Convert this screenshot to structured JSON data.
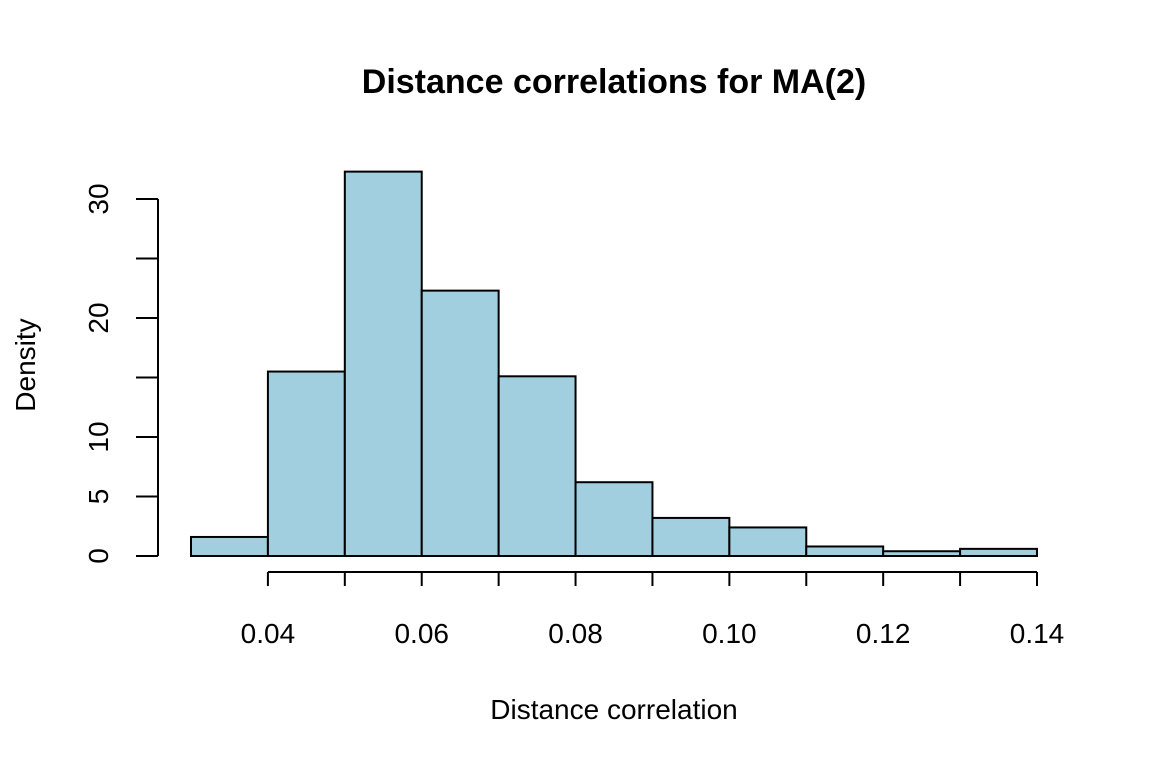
{
  "chart_data": {
    "type": "bar",
    "title": "Distance correlations for MA(2)",
    "xlabel": "Distance correlation",
    "ylabel": "Density",
    "bins": [
      {
        "start": 0.03,
        "end": 0.04,
        "density": 1.6
      },
      {
        "start": 0.04,
        "end": 0.05,
        "density": 15.5
      },
      {
        "start": 0.05,
        "end": 0.06,
        "density": 32.3
      },
      {
        "start": 0.06,
        "end": 0.07,
        "density": 22.3
      },
      {
        "start": 0.07,
        "end": 0.08,
        "density": 15.1
      },
      {
        "start": 0.08,
        "end": 0.09,
        "density": 6.2
      },
      {
        "start": 0.09,
        "end": 0.1,
        "density": 3.2
      },
      {
        "start": 0.1,
        "end": 0.11,
        "density": 2.4
      },
      {
        "start": 0.11,
        "end": 0.12,
        "density": 0.8
      },
      {
        "start": 0.12,
        "end": 0.13,
        "density": 0.4
      },
      {
        "start": 0.13,
        "end": 0.14,
        "density": 0.6
      }
    ],
    "xlim": [
      0.03,
      0.14
    ],
    "ylim": [
      0,
      30
    ],
    "x_ticks": [
      {
        "value": 0.04,
        "label": "0.04"
      },
      {
        "value": 0.06,
        "label": "0.06"
      },
      {
        "value": 0.08,
        "label": "0.08"
      },
      {
        "value": 0.1,
        "label": "0.10"
      },
      {
        "value": 0.12,
        "label": "0.12"
      },
      {
        "value": 0.14,
        "label": "0.14"
      }
    ],
    "x_minor_ticks": [
      0.05,
      0.07,
      0.09,
      0.11,
      0.13
    ],
    "y_ticks": [
      {
        "value": 0,
        "label": "0"
      },
      {
        "value": 5,
        "label": "5"
      },
      {
        "value": 10,
        "label": "10"
      },
      {
        "value": 15,
        "label": ""
      },
      {
        "value": 20,
        "label": "20"
      },
      {
        "value": 25,
        "label": ""
      },
      {
        "value": 30,
        "label": "30"
      }
    ],
    "grid": false,
    "bar_fill": "#a1cfe0",
    "bar_stroke": "#000000"
  }
}
